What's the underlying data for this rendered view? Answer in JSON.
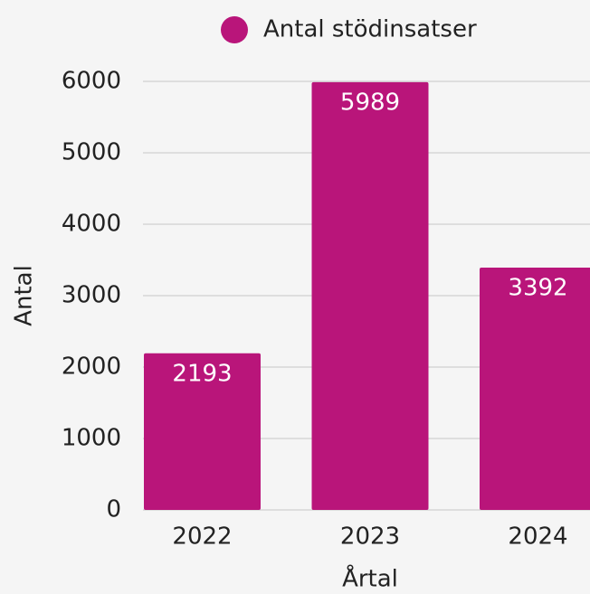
{
  "chart_data": {
    "type": "bar",
    "categories": [
      "2022",
      "2023",
      "2024"
    ],
    "series": [
      {
        "name": "Antal stödinsatser",
        "color": "#b9157a",
        "values": [
          2193,
          5989,
          3392
        ]
      }
    ],
    "xlabel": "Årtal",
    "ylabel": "Antal",
    "ylim": [
      0,
      6000
    ],
    "yticks": [
      0,
      1000,
      2000,
      3000,
      4000,
      5000,
      6000
    ],
    "grid": true,
    "legend": "top"
  }
}
